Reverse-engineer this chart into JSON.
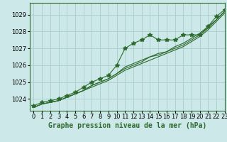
{
  "background_color": "#cce8e8",
  "grid_color": "#aacccc",
  "line_color": "#2d6a2d",
  "title": "Graphe pression niveau de la mer (hPa)",
  "xlim": [
    -0.5,
    23
  ],
  "ylim": [
    1023.3,
    1029.7
  ],
  "yticks": [
    1024,
    1025,
    1026,
    1027,
    1028,
    1029
  ],
  "xticks": [
    0,
    1,
    2,
    3,
    4,
    5,
    6,
    7,
    8,
    9,
    10,
    11,
    12,
    13,
    14,
    15,
    16,
    17,
    18,
    19,
    20,
    21,
    22,
    23
  ],
  "series_marked": [
    1023.6,
    1023.8,
    1023.9,
    1024.0,
    1024.2,
    1024.4,
    1024.7,
    1025.0,
    1025.2,
    1025.4,
    1026.0,
    1027.0,
    1027.3,
    1027.5,
    1027.8,
    1027.5,
    1027.5,
    1027.5,
    1027.8,
    1027.8,
    1027.8,
    1028.3,
    1028.9,
    1029.3
  ],
  "series_lines": [
    [
      1023.5,
      1023.7,
      1023.8,
      1023.9,
      1024.1,
      1024.3,
      1024.5,
      1024.7,
      1024.9,
      1025.1,
      1025.4,
      1025.7,
      1025.9,
      1026.1,
      1026.3,
      1026.5,
      1026.7,
      1026.9,
      1027.1,
      1027.4,
      1027.7,
      1028.1,
      1028.6,
      1029.1
    ],
    [
      1023.5,
      1023.7,
      1023.8,
      1023.9,
      1024.1,
      1024.3,
      1024.5,
      1024.8,
      1025.0,
      1025.2,
      1025.5,
      1025.8,
      1026.0,
      1026.2,
      1026.5,
      1026.6,
      1026.8,
      1027.0,
      1027.2,
      1027.5,
      1027.8,
      1028.2,
      1028.7,
      1029.2
    ],
    [
      1023.5,
      1023.7,
      1023.8,
      1023.9,
      1024.1,
      1024.3,
      1024.5,
      1024.8,
      1025.0,
      1025.2,
      1025.5,
      1025.9,
      1026.1,
      1026.3,
      1026.5,
      1026.7,
      1026.8,
      1027.1,
      1027.3,
      1027.6,
      1027.9,
      1028.3,
      1028.7,
      1029.2
    ]
  ],
  "marker": "*",
  "marker_size": 4.0,
  "font_size_title": 7,
  "font_size_ticks": 6
}
